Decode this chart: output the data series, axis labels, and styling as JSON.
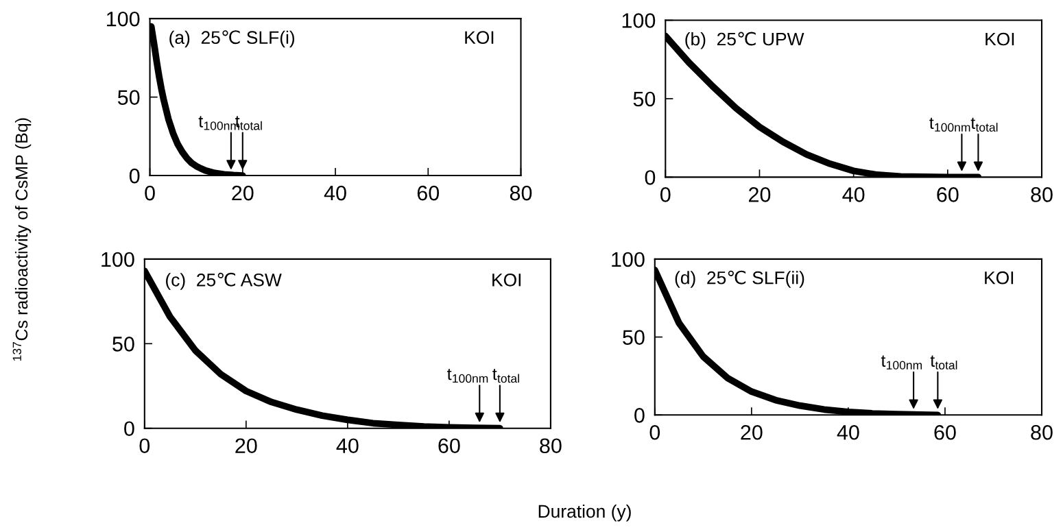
{
  "chart_data": [
    {
      "type": "line",
      "ylabel": "$^{137}$Cs radioactivity of CsMP (Bq)",
      "xlim": [
        0,
        80
      ],
      "ylim": [
        0,
        100
      ],
      "xticks": [
        0,
        20,
        40,
        60,
        80
      ],
      "yticks": [
        0,
        50,
        100
      ],
      "grid": false,
      "marker": "none",
      "line_style": "solid",
      "annotations": [
        "(a)  25℃ SLF(i)",
        "KOI",
        {
          "text": "t$_{100nm}$",
          "x": 17.5,
          "y": 0
        },
        {
          "text": "t$_{total}$",
          "x": 20,
          "y": 0
        }
      ],
      "series": [
        {
          "color": "#000000",
          "x": [
            0.3,
            1,
            1.5,
            2,
            2.5,
            3,
            3.5,
            4,
            5,
            6,
            7,
            8,
            9,
            10,
            11,
            12,
            14,
            16,
            18,
            20
          ],
          "values": [
            95,
            82,
            72,
            63,
            55,
            48,
            42,
            36,
            27,
            20,
            15,
            11,
            8,
            6,
            4.5,
            3.2,
            1.6,
            0.8,
            0.3,
            0
          ]
        }
      ]
    },
    {
      "type": "line",
      "xlim": [
        0,
        80
      ],
      "ylim": [
        0,
        100
      ],
      "xticks": [
        0,
        20,
        40,
        60,
        80
      ],
      "yticks": [
        0,
        50,
        100
      ],
      "grid": false,
      "marker": "none",
      "line_style": "solid",
      "annotations": [
        "(b)  25℃ UPW",
        "KOI",
        {
          "text": "t$_{100nm}$",
          "x": 63,
          "y": 0
        },
        {
          "text": "t$_{total}$",
          "x": 66.5,
          "y": 0
        }
      ],
      "series": [
        {
          "color": "#000000",
          "x": [
            0,
            5,
            10,
            15,
            20,
            25,
            30,
            35,
            40,
            45,
            50,
            55,
            60,
            66.5
          ],
          "values": [
            90,
            73,
            58,
            44,
            32,
            22.5,
            14.5,
            8.5,
            4,
            1.5,
            0.5,
            0.2,
            0,
            0
          ]
        }
      ]
    },
    {
      "type": "line",
      "xlabel": "Duration (y)",
      "xlim": [
        0,
        80
      ],
      "ylim": [
        0,
        100
      ],
      "xticks": [
        0,
        20,
        40,
        60,
        80
      ],
      "yticks": [
        0,
        50,
        100
      ],
      "grid": false,
      "marker": "none",
      "line_style": "solid",
      "annotations": [
        "(c)  25℃ ASW",
        "KOI",
        {
          "text": "t$_{100nm}$",
          "x": 66,
          "y": 0
        },
        {
          "text": "t$_{total}$",
          "x": 70,
          "y": 0
        }
      ],
      "series": [
        {
          "color": "#000000",
          "x": [
            0,
            5,
            10,
            15,
            20,
            25,
            30,
            35,
            40,
            45,
            50,
            55,
            60,
            65,
            70
          ],
          "values": [
            93,
            66,
            46,
            32,
            22,
            15.5,
            11,
            7.5,
            5,
            3,
            2,
            1,
            0.5,
            0.2,
            0
          ]
        }
      ]
    },
    {
      "type": "line",
      "xlim": [
        0,
        80
      ],
      "ylim": [
        0,
        100
      ],
      "xticks": [
        0,
        20,
        40,
        60,
        80
      ],
      "yticks": [
        0,
        50,
        100
      ],
      "grid": false,
      "marker": "none",
      "line_style": "solid",
      "annotations": [
        "(d)  25℃ SLF(ii)",
        "KOI",
        {
          "text": "t$_{100nm}$",
          "x": 53.5,
          "y": 0
        },
        {
          "text": "t$_{total}$",
          "x": 58.5,
          "y": 0
        }
      ],
      "series": [
        {
          "color": "#000000",
          "x": [
            0,
            5,
            10,
            15,
            20,
            25,
            30,
            35,
            40,
            45,
            50,
            55,
            58.5
          ],
          "values": [
            93,
            59,
            37.5,
            23.8,
            15,
            9.5,
            6,
            3.5,
            2,
            1,
            0.5,
            0.2,
            0
          ]
        }
      ]
    }
  ]
}
